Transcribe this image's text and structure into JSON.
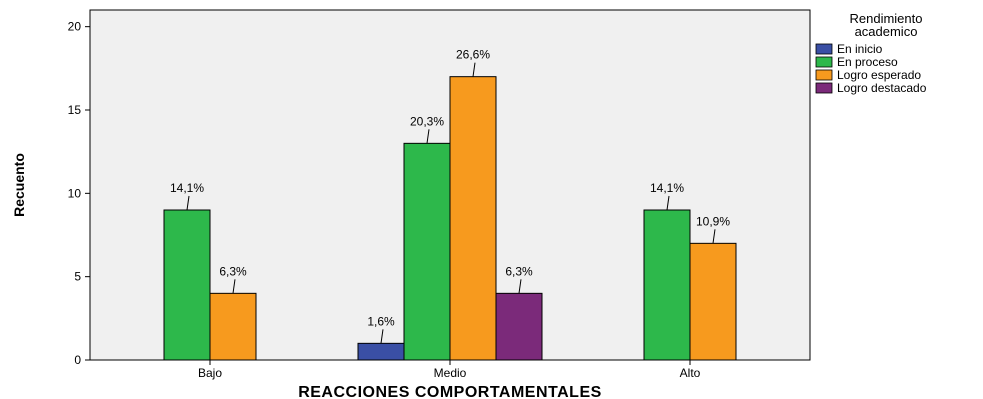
{
  "chart_data": {
    "type": "bar",
    "categories": [
      "Bajo",
      "Medio",
      "Alto"
    ],
    "series": [
      {
        "name": "En inicio",
        "color": "#3a4fa5",
        "values": [
          0,
          1,
          0
        ],
        "labels": [
          "",
          "1,6%",
          ""
        ]
      },
      {
        "name": "En proceso",
        "color": "#2db84b",
        "values": [
          9,
          13,
          9
        ],
        "labels": [
          "14,1%",
          "20,3%",
          "14,1%"
        ]
      },
      {
        "name": "Logro esperado",
        "color": "#f79a1e",
        "values": [
          4,
          17,
          7
        ],
        "labels": [
          "6,3%",
          "26,6%",
          "10,9%"
        ]
      },
      {
        "name": "Logro destacado",
        "color": "#7b2a7a",
        "values": [
          0,
          4,
          0
        ],
        "labels": [
          "",
          "6,3%",
          ""
        ]
      }
    ],
    "xlabel": "REACCIONES COMPORTAMENTALES",
    "ylabel": "Recuento",
    "ylim": [
      0,
      21
    ],
    "yticks": [
      0,
      5,
      10,
      15,
      20
    ],
    "legend": {
      "title_line1": "Rendimiento",
      "title_line2": "academico",
      "position": "right"
    },
    "plot_background": "#f0f0f0",
    "grid": false
  }
}
